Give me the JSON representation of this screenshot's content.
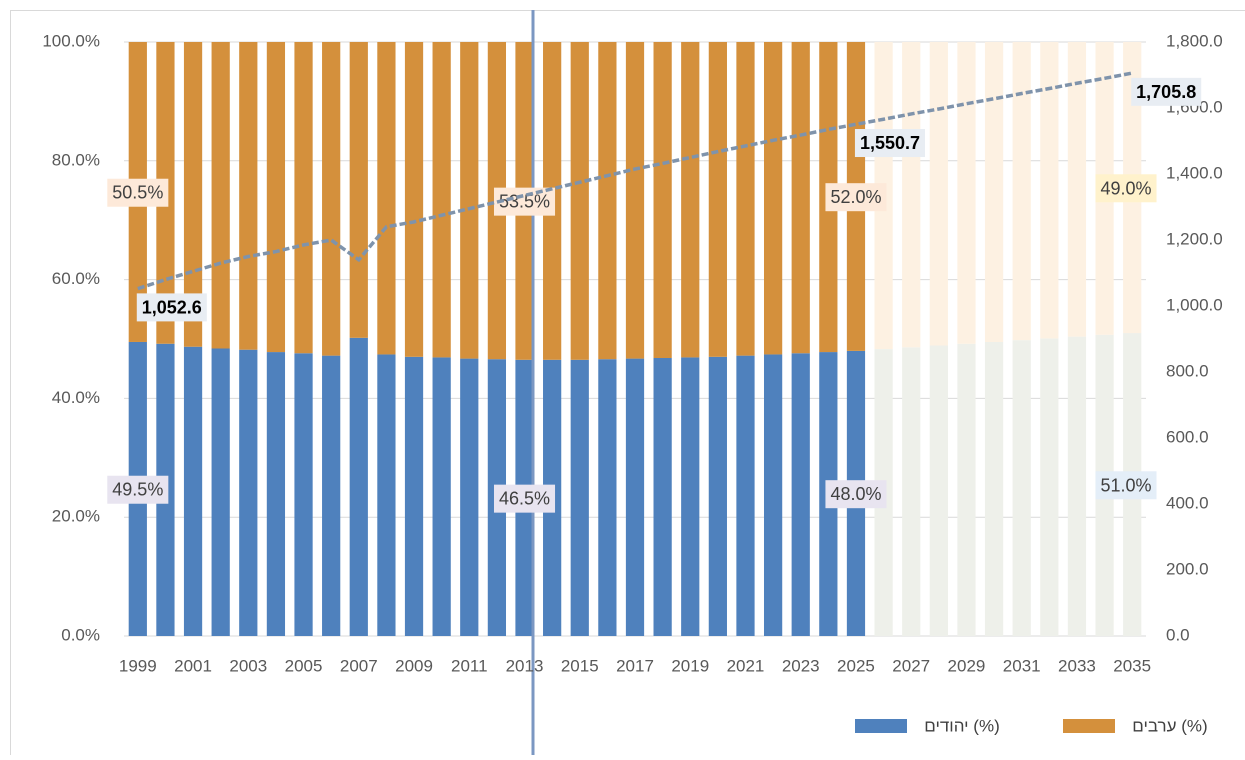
{
  "chart_data": {
    "type": "bar",
    "stacked": true,
    "categories": [
      "1999",
      null,
      "2001",
      null,
      "2003",
      null,
      "2005",
      null,
      "2007",
      null,
      "2009",
      null,
      "2011",
      null,
      "2013",
      null,
      "2015",
      null,
      "2017",
      null,
      "2019",
      null,
      "2021",
      null,
      "2023",
      null,
      "2025",
      null,
      "2027",
      null,
      "2029",
      null,
      "2031",
      null,
      "2033",
      null,
      "2035"
    ],
    "series": [
      {
        "name": "יהודים (%)",
        "color": "#4f81bd",
        "colors": [
          "#4f81bd",
          "#4f81bd",
          "#4f81bd",
          "#4f81bd",
          "#4f81bd",
          "#4f81bd",
          "#4f81bd",
          "#4f81bd",
          "#4f81bd",
          "#4f81bd",
          "#4f81bd",
          "#4f81bd",
          "#4f81bd",
          "#4f81bd",
          "#4f81bd",
          "#4f81bd",
          "#4f81bd",
          "#4f81bd",
          "#4f81bd",
          "#4f81bd",
          "#4f81bd",
          "#4f81bd",
          "#4f81bd",
          "#4f81bd",
          "#4f81bd",
          "#4f81bd",
          "#4f81bd",
          "#eef0ea",
          "#eef0ea",
          "#eef0ea",
          "#eef0ea",
          "#eef0ea",
          "#eef0ea",
          "#eef0ea",
          "#eef0ea",
          "#eef0ea",
          "#eef0ea"
        ],
        "values": [
          49.5,
          49.2,
          48.7,
          48.4,
          48.2,
          47.8,
          47.6,
          47.2,
          50.2,
          47.4,
          47.0,
          46.9,
          46.7,
          46.6,
          46.5,
          46.5,
          46.5,
          46.6,
          46.7,
          46.8,
          46.9,
          47.0,
          47.2,
          47.4,
          47.6,
          47.8,
          48.0,
          48.3,
          48.6,
          48.9,
          49.2,
          49.5,
          49.8,
          50.1,
          50.4,
          50.7,
          51.0
        ],
        "value_labels": [
          "49.5%",
          null,
          null,
          null,
          null,
          null,
          null,
          null,
          null,
          null,
          null,
          null,
          null,
          null,
          "46.5%",
          null,
          null,
          null,
          null,
          null,
          null,
          null,
          null,
          null,
          null,
          null,
          "48.0%",
          null,
          null,
          null,
          null,
          null,
          null,
          null,
          null,
          null,
          "51.0%"
        ]
      },
      {
        "name": "ערבים (%)",
        "color": "#d4903c",
        "colors": [
          "#d4903c",
          "#d4903c",
          "#d4903c",
          "#d4903c",
          "#d4903c",
          "#d4903c",
          "#d4903c",
          "#d4903c",
          "#d4903c",
          "#d4903c",
          "#d4903c",
          "#d4903c",
          "#d4903c",
          "#d4903c",
          "#d4903c",
          "#d4903c",
          "#d4903c",
          "#d4903c",
          "#d4903c",
          "#d4903c",
          "#d4903c",
          "#d4903c",
          "#d4903c",
          "#d4903c",
          "#d4903c",
          "#d4903c",
          "#d4903c",
          "#fdf1e2",
          "#fdf1e2",
          "#fdf1e2",
          "#fdf1e2",
          "#fdf1e2",
          "#fdf1e2",
          "#fdf1e2",
          "#fdf1e2",
          "#fdf1e2",
          "#fdf1e2"
        ],
        "values": [
          50.5,
          50.8,
          51.3,
          51.6,
          51.8,
          52.2,
          52.4,
          52.8,
          49.8,
          52.6,
          53.0,
          53.1,
          53.3,
          53.4,
          53.5,
          53.5,
          53.5,
          53.4,
          53.3,
          53.2,
          53.1,
          53.0,
          52.8,
          52.6,
          52.4,
          52.2,
          52.0,
          51.7,
          51.4,
          51.1,
          50.8,
          50.5,
          50.2,
          49.9,
          49.6,
          49.3,
          49.0
        ],
        "value_labels": [
          "50.5%",
          null,
          null,
          null,
          null,
          null,
          null,
          null,
          null,
          null,
          null,
          null,
          null,
          null,
          "53.5%",
          null,
          null,
          null,
          null,
          null,
          null,
          null,
          null,
          null,
          null,
          null,
          "52.0%",
          null,
          null,
          null,
          null,
          null,
          null,
          null,
          null,
          null,
          "49.0%"
        ]
      },
      {
        "type": "line",
        "axis": "y2",
        "color": "#7f93ab",
        "dashed": true,
        "values": [
          1052.6,
          1080,
          1105,
          1130,
          1150,
          1165,
          1185,
          1200,
          1140,
          1240,
          1255,
          1275,
          1295,
          1315,
          1335,
          1355,
          1375,
          1395,
          1415,
          1432,
          1450,
          1468,
          1485,
          1502,
          1518,
          1535,
          1550.7,
          1566,
          1582,
          1597,
          1613,
          1628,
          1644,
          1659,
          1675,
          1690,
          1705.8
        ],
        "value_labels": [
          "1,052.6",
          null,
          null,
          null,
          null,
          null,
          null,
          null,
          null,
          null,
          null,
          null,
          null,
          null,
          null,
          null,
          null,
          null,
          null,
          null,
          null,
          null,
          null,
          null,
          null,
          null,
          "1,550.7",
          null,
          null,
          null,
          null,
          null,
          null,
          null,
          null,
          null,
          "1,705.8"
        ]
      }
    ],
    "ylim": [
      0,
      100
    ],
    "yticks": [
      {
        "value": 0,
        "label": "0.0%"
      },
      {
        "value": 20,
        "label": "20.0%"
      },
      {
        "value": 40,
        "label": "40.0%"
      },
      {
        "value": 60,
        "label": "60.0%"
      },
      {
        "value": 80,
        "label": "80.0%"
      },
      {
        "value": 100,
        "label": "100.0%"
      }
    ],
    "y2lim": [
      0,
      1800
    ],
    "y2ticks": [
      {
        "value": 0,
        "label": "0.0"
      },
      {
        "value": 200,
        "label": "200.0"
      },
      {
        "value": 400,
        "label": "400.0"
      },
      {
        "value": 600,
        "label": "600.0"
      },
      {
        "value": 800,
        "label": "800.0"
      },
      {
        "value": 1000,
        "label": "1,000.0"
      },
      {
        "value": 1200,
        "label": "1,200.0"
      },
      {
        "value": 1400,
        "label": "1,400.0"
      },
      {
        "value": 1600,
        "label": "1,600.0"
      },
      {
        "value": 1800,
        "label": "1,800.0"
      }
    ],
    "grid": true,
    "legend": "bottom-right"
  }
}
